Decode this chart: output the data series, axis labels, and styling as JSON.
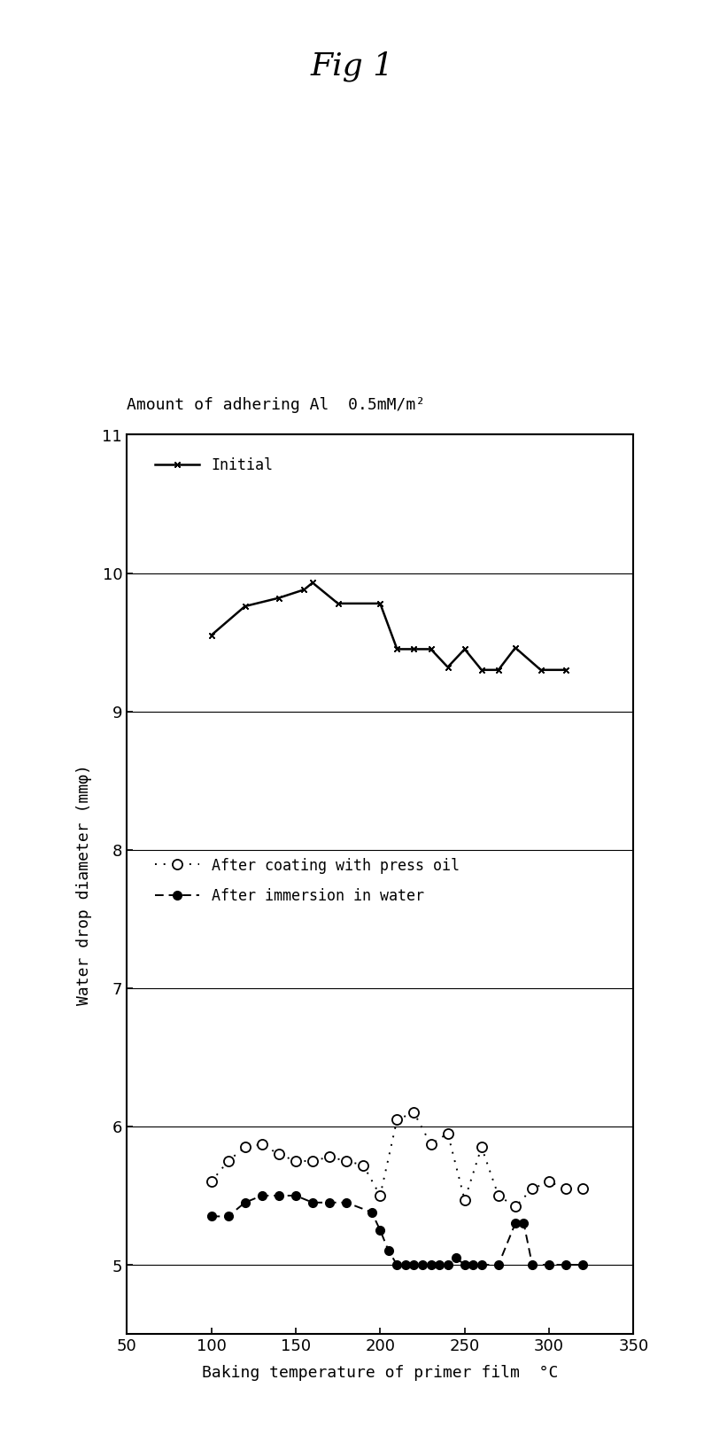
{
  "title": "Fig 1",
  "subtitle": "Amount of adhering Al  0.5mM/m²",
  "xlabel": "Baking temperature of primer film  °C",
  "ylabel": "Water drop diameter (mmφ)",
  "xlim": [
    50,
    350
  ],
  "ylim": [
    4.5,
    11.0
  ],
  "xticks": [
    50,
    100,
    150,
    200,
    250,
    300,
    350
  ],
  "yticks": [
    5,
    6,
    7,
    8,
    9,
    10,
    11
  ],
  "initial_x": [
    100,
    120,
    140,
    155,
    160,
    175,
    200,
    210,
    220,
    230,
    240,
    250,
    260,
    270,
    280,
    295,
    310
  ],
  "initial_y": [
    9.55,
    9.76,
    9.82,
    9.88,
    9.93,
    9.78,
    9.78,
    9.45,
    9.45,
    9.45,
    9.32,
    9.45,
    9.3,
    9.3,
    9.46,
    9.3,
    9.3
  ],
  "press_oil_x": [
    100,
    110,
    120,
    130,
    140,
    150,
    160,
    170,
    180,
    190,
    200,
    210,
    220,
    230,
    240,
    250,
    260,
    270,
    280,
    290,
    300,
    310,
    320
  ],
  "press_oil_y": [
    5.6,
    5.75,
    5.85,
    5.87,
    5.8,
    5.75,
    5.75,
    5.78,
    5.75,
    5.72,
    5.5,
    6.05,
    6.1,
    5.87,
    5.95,
    5.47,
    5.85,
    5.5,
    5.42,
    5.55,
    5.6,
    5.55,
    5.55
  ],
  "immersion_x": [
    100,
    110,
    120,
    130,
    140,
    150,
    160,
    170,
    180,
    195,
    200,
    205,
    210,
    215,
    220,
    225,
    230,
    235,
    240,
    245,
    250,
    255,
    260,
    270,
    280,
    285,
    290,
    300,
    310,
    320
  ],
  "immersion_y": [
    5.35,
    5.35,
    5.45,
    5.5,
    5.5,
    5.5,
    5.45,
    5.45,
    5.45,
    5.38,
    5.25,
    5.1,
    5.0,
    5.0,
    5.0,
    5.0,
    5.0,
    5.0,
    5.0,
    5.05,
    5.0,
    5.0,
    5.0,
    5.0,
    5.3,
    5.3,
    5.0,
    5.0,
    5.0,
    5.0
  ],
  "fig_width": 7.95,
  "fig_height": 16.365,
  "title_fontsize": 26,
  "subtitle_fontsize": 13,
  "tick_fontsize": 13,
  "label_fontsize": 13,
  "legend_fontsize": 12
}
